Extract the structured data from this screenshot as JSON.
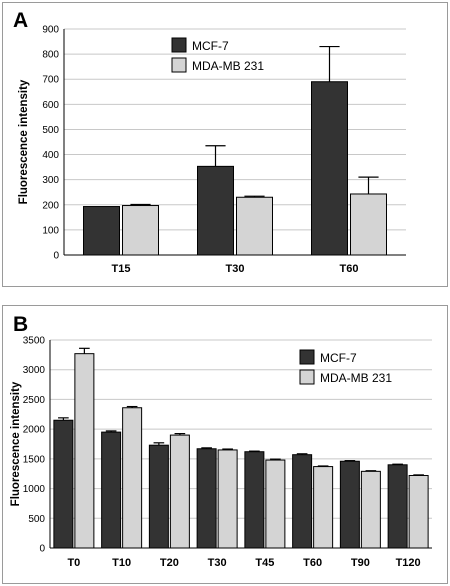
{
  "chart_data": [
    {
      "panel": "A",
      "type": "bar",
      "categories": [
        "T15",
        "T30",
        "T60"
      ],
      "series": [
        {
          "name": "MCF-7",
          "color": "#333333",
          "values": [
            193,
            353,
            690
          ],
          "errors": [
            0,
            82,
            140
          ]
        },
        {
          "name": "MDA-MB 231",
          "color": "#d4d4d4",
          "values": [
            197,
            230,
            243
          ],
          "errors": [
            4,
            4,
            67
          ]
        }
      ],
      "ylabel": "Fluorescence intensity",
      "xlabel": "",
      "ylim": [
        0,
        900
      ],
      "yticks": [
        0,
        100,
        200,
        300,
        400,
        500,
        600,
        700,
        800,
        900
      ],
      "grid": true,
      "legend": "top-center"
    },
    {
      "panel": "B",
      "type": "bar",
      "categories": [
        "T0",
        "T10",
        "T20",
        "T30",
        "T45",
        "T60",
        "T90",
        "T120"
      ],
      "series": [
        {
          "name": "MCF-7",
          "color": "#333333",
          "values": [
            2150,
            1950,
            1730,
            1670,
            1620,
            1570,
            1460,
            1400
          ],
          "errors": [
            40,
            20,
            40,
            15,
            10,
            15,
            10,
            10
          ]
        },
        {
          "name": "MDA-MB 231",
          "color": "#d4d4d4",
          "values": [
            3270,
            2360,
            1900,
            1650,
            1480,
            1370,
            1290,
            1220
          ],
          "errors": [
            90,
            20,
            25,
            15,
            15,
            10,
            10,
            10
          ]
        }
      ],
      "ylabel": "Fluorescence intensity",
      "xlabel": "",
      "ylim": [
        0,
        3500
      ],
      "yticks": [
        0,
        500,
        1000,
        1500,
        2000,
        2500,
        3000,
        3500
      ],
      "grid": true,
      "legend": "top-right"
    }
  ]
}
